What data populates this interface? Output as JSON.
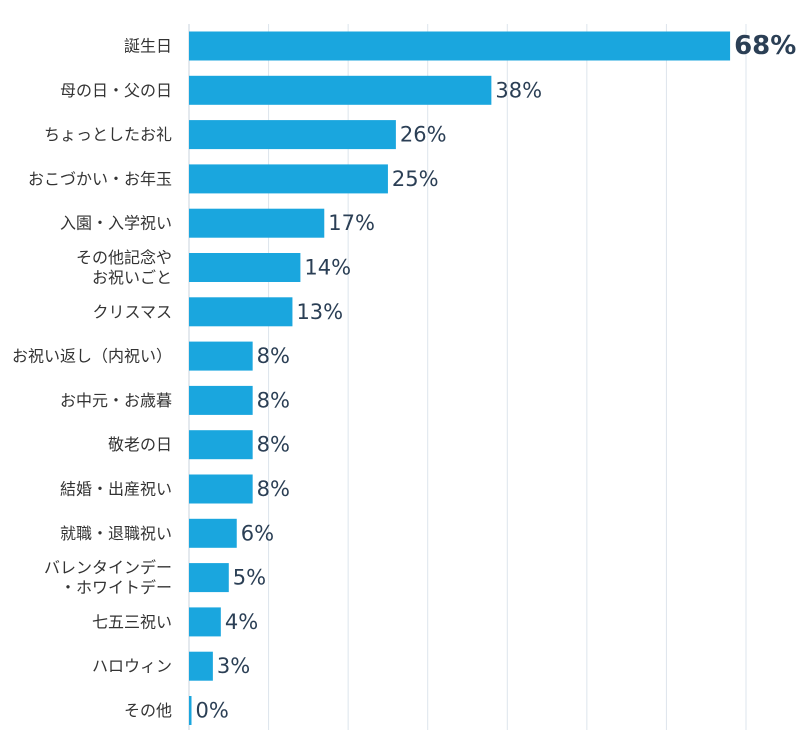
{
  "chart_data": {
    "type": "bar",
    "orientation": "horizontal",
    "categories": [
      [
        "誕生日"
      ],
      [
        "母の日・父の日"
      ],
      [
        "ちょっとしたお礼"
      ],
      [
        "おこづかい・お年玉"
      ],
      [
        "入園・入学祝い"
      ],
      [
        "その他記念や",
        "お祝いごと"
      ],
      [
        "クリスマス"
      ],
      [
        "お祝い返し（内祝い）"
      ],
      [
        "お中元・お歳暮"
      ],
      [
        "敬老の日"
      ],
      [
        "結婚・出産祝い"
      ],
      [
        "就職・退職祝い"
      ],
      [
        "バレンタインデー",
        "・ホワイトデー"
      ],
      [
        "七五三祝い"
      ],
      [
        "ハロウィン"
      ],
      [
        "その他"
      ]
    ],
    "values": [
      68,
      38,
      26,
      25,
      17,
      14,
      13,
      8,
      8,
      8,
      8,
      6,
      5,
      4,
      3,
      0
    ],
    "value_labels": [
      "68%",
      "38%",
      "26%",
      "25%",
      "17%",
      "14%",
      "13%",
      "8%",
      "8%",
      "8%",
      "8%",
      "6%",
      "5%",
      "4%",
      "3%",
      "0%"
    ],
    "xlim": [
      0,
      76
    ],
    "grid": true,
    "gridlines_at": [
      10,
      20,
      30,
      40,
      50,
      60,
      70
    ],
    "bar_color": "#1aa6de",
    "highlight_label_color": "#2b3f55"
  }
}
